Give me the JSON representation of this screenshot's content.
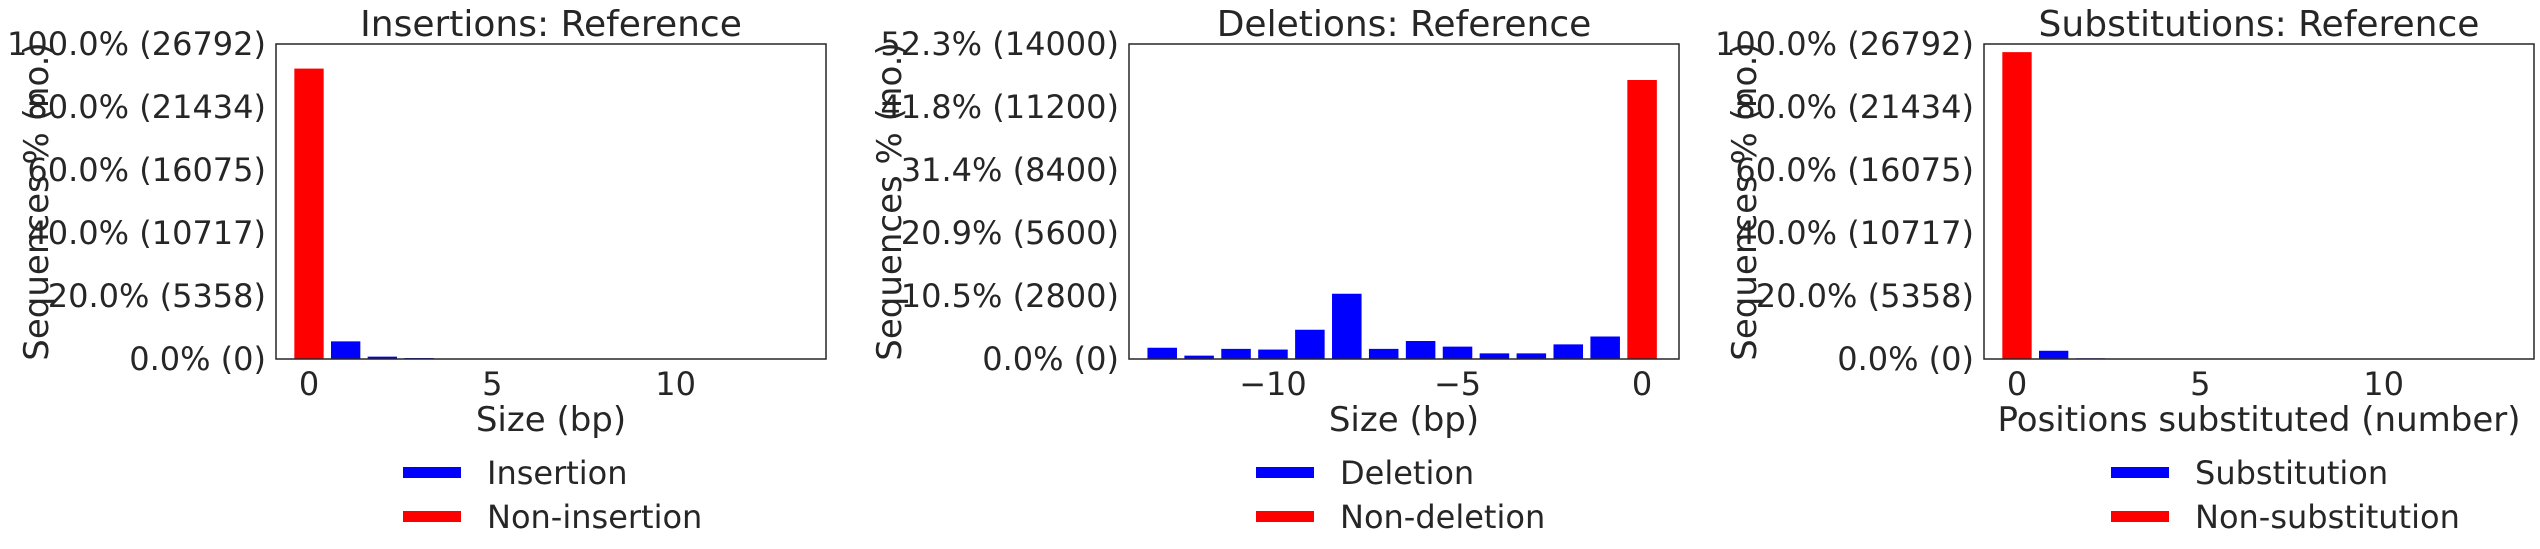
{
  "chart_data": [
    {
      "type": "bar",
      "title": "Insertions: Reference",
      "xlabel": "Size (bp)",
      "ylabel": "Sequences % (no.)",
      "xlim": [
        -0.9,
        14.1
      ],
      "ylim": [
        0,
        26792
      ],
      "xticks": [
        0,
        5,
        10
      ],
      "xtick_labels": [
        "0",
        "5",
        "10"
      ],
      "yticks": [
        0,
        5358,
        10717,
        16075,
        21434,
        26792
      ],
      "ytick_labels": [
        "0.0% (0)",
        "20.0% (5358)",
        "40.0% (10717)",
        "60.0% (16075)",
        "80.0% (21434)",
        "100.0% (26792)"
      ],
      "series": [
        {
          "name": "Insertion",
          "color": "#0000ff",
          "x": [
            1,
            2,
            3,
            4,
            5,
            6,
            7,
            8,
            9,
            10,
            11,
            12,
            13
          ],
          "values": [
            1500,
            200,
            80,
            40,
            25,
            15,
            10,
            8,
            5,
            4,
            3,
            2,
            2
          ]
        },
        {
          "name": "Non-insertion",
          "color": "#ff0000",
          "x": [
            0
          ],
          "values": [
            24700
          ]
        }
      ],
      "legend": "below",
      "grid": false
    },
    {
      "type": "bar",
      "title": "Deletions: Reference",
      "xlabel": "Size (bp)",
      "ylabel": "Sequences % (no.)",
      "xlim": [
        -13.9,
        1.0
      ],
      "ylim": [
        0,
        14000
      ],
      "xticks": [
        -10,
        -5,
        0
      ],
      "xtick_labels": [
        "−10",
        "−5",
        "0"
      ],
      "yticks": [
        0,
        2800,
        5600,
        8400,
        11200,
        14000
      ],
      "ytick_labels": [
        "0.0% (0)",
        "10.5% (2800)",
        "20.9% (5600)",
        "31.4% (8400)",
        "41.8% (11200)",
        "52.3% (14000)"
      ],
      "series": [
        {
          "name": "Deletion",
          "color": "#0000ff",
          "x": [
            -13,
            -12,
            -11,
            -10,
            -9,
            -8,
            -7,
            -6,
            -5,
            -4,
            -3,
            -2,
            -1
          ],
          "values": [
            500,
            150,
            450,
            420,
            1300,
            2900,
            450,
            800,
            550,
            250,
            250,
            650,
            1000
          ]
        },
        {
          "name": "Non-deletion",
          "color": "#ff0000",
          "x": [
            0
          ],
          "values": [
            12400
          ]
        }
      ],
      "legend": "below",
      "grid": false
    },
    {
      "type": "bar",
      "title": "Substitutions: Reference",
      "xlabel": "Positions substituted (number)",
      "ylabel": "Sequences % (no.)",
      "xlim": [
        -0.9,
        14.1
      ],
      "ylim": [
        0,
        26792
      ],
      "xticks": [
        0,
        5,
        10
      ],
      "xtick_labels": [
        "0",
        "5",
        "10"
      ],
      "yticks": [
        0,
        5358,
        10717,
        16075,
        21434,
        26792
      ],
      "ytick_labels": [
        "0.0% (0)",
        "20.0% (5358)",
        "40.0% (10717)",
        "60.0% (16075)",
        "80.0% (21434)",
        "100.0% (26792)"
      ],
      "series": [
        {
          "name": "Substitution",
          "color": "#0000ff",
          "x": [
            1,
            2,
            3,
            4,
            5,
            6,
            7,
            8,
            9,
            10,
            11,
            12,
            13
          ],
          "values": [
            700,
            60,
            20,
            10,
            5,
            3,
            2,
            1,
            1,
            1,
            0,
            0,
            0
          ]
        },
        {
          "name": "Non-substitution",
          "color": "#ff0000",
          "x": [
            0
          ],
          "values": [
            26100
          ]
        }
      ],
      "legend": "below",
      "grid": false
    }
  ]
}
